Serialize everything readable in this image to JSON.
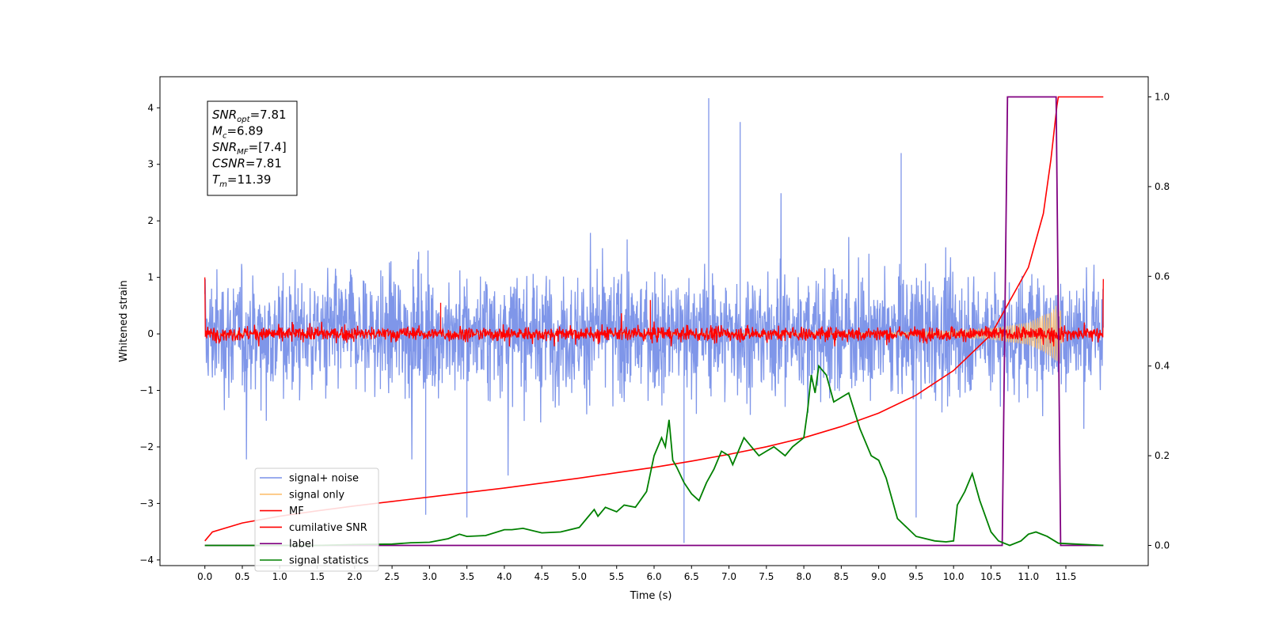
{
  "chart_data": {
    "type": "line",
    "xlabel": "Time (s)",
    "ylabel": "Whitened strain",
    "xlim": [
      -0.6,
      12.6
    ],
    "ylim": [
      -4.1,
      4.55
    ],
    "y2lim": [
      -0.045,
      1.045
    ],
    "x_ticks": [
      0.0,
      0.5,
      1.0,
      1.5,
      2.0,
      2.5,
      3.0,
      3.5,
      4.0,
      4.5,
      5.0,
      5.5,
      6.0,
      6.5,
      7.0,
      7.5,
      8.0,
      8.5,
      9.0,
      9.5,
      10.0,
      10.5,
      11.0,
      11.5
    ],
    "x_tick_labels": [
      "0.0",
      "0.5",
      "1.0",
      "1.5",
      "2.0",
      "2.5",
      "3.0",
      "3.5",
      "4.0",
      "4.5",
      "5.0",
      "5.5",
      "6.0",
      "6.5",
      "7.0",
      "7.5",
      "8.0",
      "8.5",
      "9.0",
      "9.5",
      "10.0",
      "10.5",
      "11.0",
      "11.5"
    ],
    "y_ticks": [
      -4,
      -3,
      -2,
      -1,
      0,
      1,
      2,
      3,
      4
    ],
    "y_tick_labels": [
      "−4",
      "−3",
      "−2",
      "−1",
      "0",
      "1",
      "2",
      "3",
      "4"
    ],
    "y2_ticks": [
      0.0,
      0.2,
      0.4,
      0.6,
      0.8,
      1.0
    ],
    "y2_tick_labels": [
      "0.0",
      "0.2",
      "0.4",
      "0.6",
      "0.8",
      "1.0"
    ],
    "legend_position": "lower-left",
    "grid": false,
    "series": [
      {
        "name": "signal+ noise",
        "axis": "left",
        "color": "#7890e8",
        "style": "noise band, amplitude ±~1.7 with spikes up to 4.17 and down to −3.7",
        "notable_points": [
          [
            6.73,
            4.17
          ],
          [
            6.4,
            -3.7
          ],
          [
            3.5,
            -3.25
          ],
          [
            2.95,
            -3.2
          ],
          [
            9.3,
            3.2
          ],
          [
            7.15,
            3.75
          ],
          [
            9.5,
            -3.25
          ]
        ]
      },
      {
        "name": "signal only",
        "axis": "left",
        "color": "#fdbf6f",
        "style": "chirp growing from ~0 to ±0.55 near 11.4 s",
        "envelope": [
          [
            0.0,
            0.0
          ],
          [
            9.0,
            0.02
          ],
          [
            10.0,
            0.05
          ],
          [
            10.5,
            0.1
          ],
          [
            11.0,
            0.2
          ],
          [
            11.3,
            0.4
          ],
          [
            11.42,
            0.58
          ],
          [
            11.45,
            0.0
          ]
        ]
      },
      {
        "name": "MF",
        "axis": "left",
        "color": "#ff0000",
        "style": "noisy band around 0, amplitude ±~0.2",
        "notable_points": [
          [
            0.0,
            1.0
          ],
          [
            5.95,
            0.6
          ],
          [
            3.15,
            0.55
          ],
          [
            12.0,
            0.97
          ]
        ]
      },
      {
        "name": "cumilative SNR",
        "axis": "right",
        "color": "#ff0000",
        "x": [
          0.0,
          0.1,
          0.5,
          1.0,
          1.5,
          2.0,
          2.5,
          3.0,
          3.5,
          4.0,
          4.5,
          5.0,
          5.5,
          6.0,
          6.5,
          7.0,
          7.5,
          8.0,
          8.5,
          9.0,
          9.5,
          10.0,
          10.5,
          11.0,
          11.2,
          11.3,
          11.38,
          11.4,
          12.0
        ],
        "y": [
          0.01,
          0.03,
          0.05,
          0.065,
          0.077,
          0.088,
          0.098,
          0.108,
          0.118,
          0.128,
          0.139,
          0.15,
          0.162,
          0.174,
          0.188,
          0.203,
          0.22,
          0.24,
          0.265,
          0.295,
          0.335,
          0.39,
          0.47,
          0.62,
          0.74,
          0.86,
          0.98,
          1.0,
          1.0
        ]
      },
      {
        "name": "label",
        "axis": "right",
        "color": "#800080",
        "x": [
          0.0,
          10.65,
          10.72,
          11.37,
          11.43,
          12.0
        ],
        "y": [
          0.0,
          0.0,
          1.0,
          1.0,
          0.0,
          0.0
        ]
      },
      {
        "name": "signal statistics",
        "axis": "right",
        "color": "#008000",
        "x": [
          0.0,
          0.5,
          1.0,
          1.5,
          2.0,
          2.5,
          2.75,
          3.0,
          3.25,
          3.4,
          3.5,
          3.75,
          4.0,
          4.1,
          4.25,
          4.5,
          4.75,
          5.0,
          5.1,
          5.2,
          5.25,
          5.35,
          5.5,
          5.6,
          5.75,
          5.9,
          6.0,
          6.1,
          6.15,
          6.2,
          6.25,
          6.3,
          6.4,
          6.5,
          6.6,
          6.7,
          6.8,
          6.9,
          7.0,
          7.05,
          7.1,
          7.2,
          7.3,
          7.4,
          7.5,
          7.6,
          7.75,
          7.85,
          8.0,
          8.05,
          8.1,
          8.15,
          8.2,
          8.3,
          8.4,
          8.5,
          8.6,
          8.75,
          8.9,
          9.0,
          9.1,
          9.25,
          9.5,
          9.75,
          9.9,
          10.0,
          10.05,
          10.15,
          10.25,
          10.35,
          10.5,
          10.6,
          10.75,
          10.9,
          11.0,
          11.1,
          11.25,
          11.4,
          12.0
        ],
        "y": [
          0.0,
          0.0,
          0.0,
          0.0,
          0.002,
          0.003,
          0.006,
          0.007,
          0.015,
          0.025,
          0.02,
          0.022,
          0.035,
          0.035,
          0.038,
          0.028,
          0.03,
          0.04,
          0.06,
          0.08,
          0.065,
          0.085,
          0.075,
          0.09,
          0.085,
          0.12,
          0.2,
          0.24,
          0.22,
          0.28,
          0.19,
          0.175,
          0.14,
          0.115,
          0.1,
          0.14,
          0.17,
          0.21,
          0.2,
          0.18,
          0.2,
          0.24,
          0.22,
          0.2,
          0.21,
          0.22,
          0.2,
          0.22,
          0.24,
          0.3,
          0.38,
          0.34,
          0.4,
          0.38,
          0.32,
          0.33,
          0.34,
          0.26,
          0.2,
          0.19,
          0.15,
          0.06,
          0.02,
          0.01,
          0.008,
          0.01,
          0.09,
          0.12,
          0.16,
          0.1,
          0.03,
          0.01,
          0.0,
          0.01,
          0.025,
          0.03,
          0.02,
          0.005,
          0.0
        ]
      }
    ],
    "annotation_box": {
      "lines": [
        {
          "sym": "SNR",
          "sub": "opt",
          "value": "=7.81"
        },
        {
          "sym": "M",
          "sub": "c",
          "value": "=6.89"
        },
        {
          "sym": "SNR",
          "sub": "MF",
          "value": "=[7.4]"
        },
        {
          "sym": "CSNR",
          "sub": "",
          "value": "=7.81"
        },
        {
          "sym": "T",
          "sub": "m",
          "value": "=11.39"
        }
      ]
    }
  }
}
